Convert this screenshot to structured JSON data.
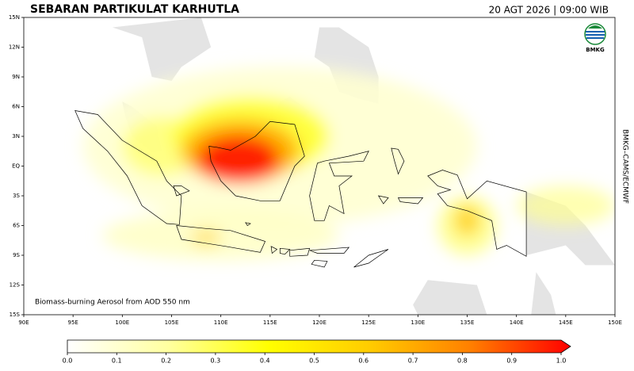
{
  "header": {
    "title": "SEBARAN PARTIKULAT KARHUTLA",
    "timestamp": "20 AGT 2026 | 09:00 WIB"
  },
  "map": {
    "xlim": [
      90,
      150
    ],
    "ylim": [
      -15,
      15
    ],
    "xticks": [
      {
        "value": 90,
        "label": "90E"
      },
      {
        "value": 95,
        "label": "95E"
      },
      {
        "value": 100,
        "label": "100E"
      },
      {
        "value": 105,
        "label": "105E"
      },
      {
        "value": 110,
        "label": "110E"
      },
      {
        "value": 115,
        "label": "115E"
      },
      {
        "value": 120,
        "label": "120E"
      },
      {
        "value": 125,
        "label": "125E"
      },
      {
        "value": 130,
        "label": "130E"
      },
      {
        "value": 135,
        "label": "135E"
      },
      {
        "value": 140,
        "label": "140E"
      },
      {
        "value": 145,
        "label": "145E"
      },
      {
        "value": 150,
        "label": "150E"
      }
    ],
    "yticks": [
      {
        "value": 15,
        "label": "15N"
      },
      {
        "value": 12,
        "label": "12N"
      },
      {
        "value": 9,
        "label": "9N"
      },
      {
        "value": 6,
        "label": "6N"
      },
      {
        "value": 3,
        "label": "3N"
      },
      {
        "value": 0,
        "label": "EQ"
      },
      {
        "value": -3,
        "label": "3S"
      },
      {
        "value": -6,
        "label": "6S"
      },
      {
        "value": -9,
        "label": "9S"
      },
      {
        "value": -12,
        "label": "12S"
      },
      {
        "value": -15,
        "label": "15S"
      }
    ],
    "annotation": "Biomass-burning Aerosol from AOD 550 nm",
    "source": "BMKG–CAMS/ECMWF",
    "logo": "BMKG"
  },
  "colorbar": {
    "lim": [
      0,
      1
    ],
    "ticks": [
      {
        "value": 0,
        "label": "0.0"
      },
      0.1,
      0.2,
      0.3,
      0.4,
      0.5,
      0.6,
      0.7,
      0.8,
      0.9,
      {
        "value": 1,
        "label": "1.0"
      }
    ],
    "colors": [
      "#ffffff",
      "#ffffa0",
      "#ffff00",
      "#ffcc00",
      "#ff8000",
      "#ff0000"
    ]
  }
}
